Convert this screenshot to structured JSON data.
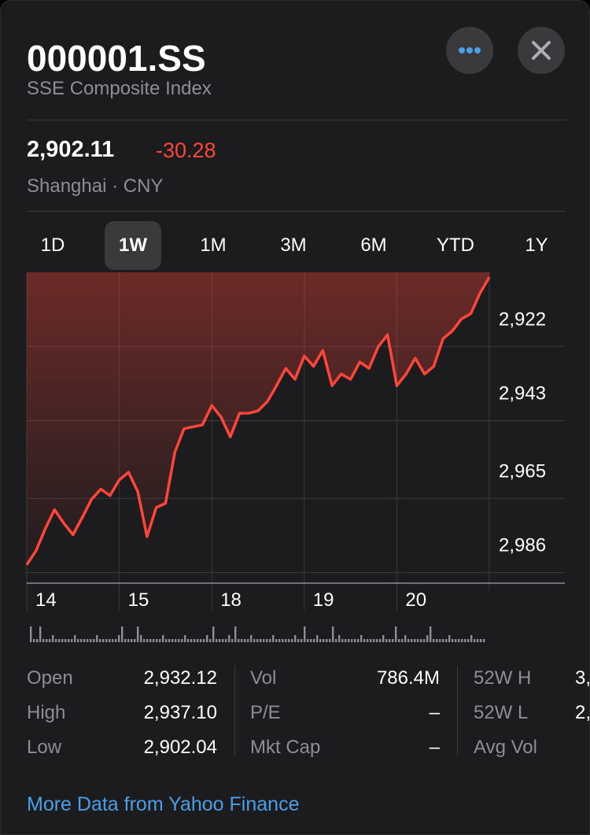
{
  "header": {
    "symbol": "000001.SS",
    "name": "SSE Composite Index",
    "price": "2,902.11",
    "change": "-30.28",
    "exchange": "Shanghai · CNY"
  },
  "ranges": [
    "1D",
    "1W",
    "1M",
    "3M",
    "6M",
    "YTD",
    "1Y"
  ],
  "selected_range": "1W",
  "chart_data": {
    "type": "line",
    "color": "#ff453a",
    "x": [
      0,
      0.1,
      0.2,
      0.3,
      0.4,
      0.5,
      0.6,
      0.7,
      0.8,
      0.9,
      1,
      1.1,
      1.2,
      1.3,
      1.4,
      1.5,
      1.6,
      1.7,
      1.8,
      1.9,
      2,
      2.1,
      2.2,
      2.3,
      2.4,
      2.5,
      2.6,
      2.7,
      2.8,
      2.9,
      3,
      3.1,
      3.2,
      3.3,
      3.4,
      3.5,
      3.6,
      3.7,
      3.8,
      3.9,
      4,
      4.1,
      4.2,
      4.3,
      4.4,
      4.5,
      4.6,
      4.7,
      4.8,
      4.9,
      5
    ],
    "values": [
      2983.8,
      2979.8,
      2973.6,
      2968.2,
      2972.0,
      2975.3,
      2970.4,
      2965.3,
      2962.4,
      2964.2,
      2959.8,
      2957.6,
      2963.1,
      2975.8,
      2967.6,
      2966.4,
      2952.0,
      2945.3,
      2944.7,
      2944.2,
      2938.7,
      2942.0,
      2947.6,
      2940.9,
      2940.9,
      2940.2,
      2937.6,
      2933.1,
      2928.2,
      2931.3,
      2924.7,
      2927.6,
      2923.1,
      2933.1,
      2929.8,
      2931.3,
      2926.4,
      2928.2,
      2922.0,
      2918.7,
      2933.1,
      2929.8,
      2925.3,
      2929.8,
      2927.6,
      2919.8,
      2917.6,
      2914.2,
      2912.7,
      2906.9,
      2902.4
    ],
    "xlim": [
      0,
      5
    ],
    "xticks": [
      {
        "value": 0,
        "label": "14"
      },
      {
        "value": 1,
        "label": "15"
      },
      {
        "value": 2,
        "label": "18"
      },
      {
        "value": 3,
        "label": "19"
      },
      {
        "value": 4,
        "label": "20"
      }
    ],
    "ylim": [
      2901,
      2989
    ],
    "y_inverted": true,
    "yticks": [
      {
        "value": 2922,
        "label": "2,922"
      },
      {
        "value": 2943,
        "label": "2,943"
      },
      {
        "value": 2965,
        "label": "2,965"
      },
      {
        "value": 2986,
        "label": "2,986"
      }
    ],
    "grid": true
  },
  "stats": [
    [
      {
        "label": "Open",
        "value": "2,932.12"
      },
      {
        "label": "High",
        "value": "2,937.10"
      },
      {
        "label": "Low",
        "value": "2,902.04"
      }
    ],
    [
      {
        "label": "Vol",
        "value": "786.4M"
      },
      {
        "label": "P/E",
        "value": "–"
      },
      {
        "label": "Mkt Cap",
        "value": "–"
      }
    ],
    [
      {
        "label": "52W H",
        "value": "3,"
      },
      {
        "label": "52W L",
        "value": "2,"
      },
      {
        "label": "Avg Vol"
      }
    ]
  ],
  "footer": {
    "link": "More Data from Yahoo Finance"
  }
}
